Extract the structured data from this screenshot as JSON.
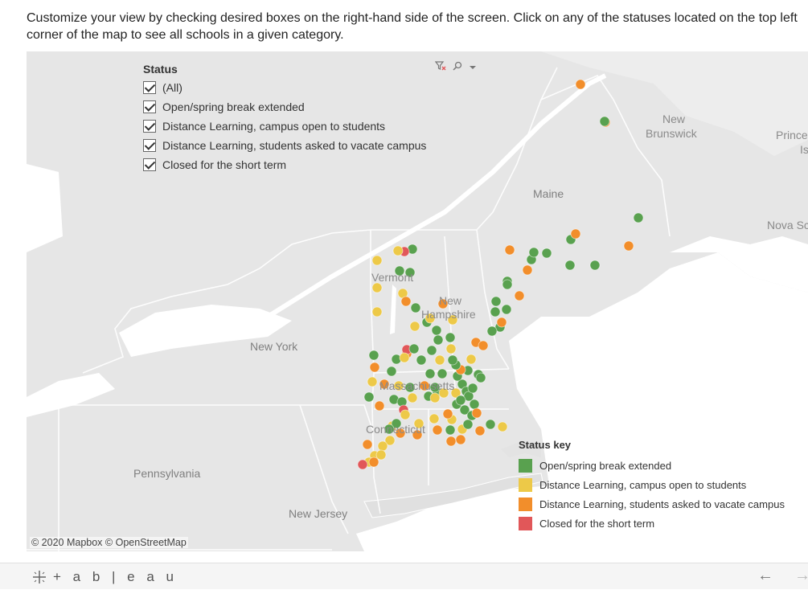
{
  "instructions": "Customize your view by checking desired boxes on the right-hand side of the screen. Click on any of the statuses located on the top left corner of the map to see all schools in a given category.",
  "filter": {
    "title": "Status",
    "items": [
      {
        "label": "(All)",
        "checked": true
      },
      {
        "label": "Open/spring break extended",
        "checked": true
      },
      {
        "label": "Distance Learning, campus open to students",
        "checked": true
      },
      {
        "label": "Distance Learning, students asked to vacate campus",
        "checked": true
      },
      {
        "label": "Closed for the short term",
        "checked": true
      }
    ],
    "tools": {
      "clear_icon": "filter-clear-icon",
      "search_icon": "search-icon",
      "menu_icon": "dropdown-arrow-icon"
    }
  },
  "legend": {
    "title": "Status key",
    "items": [
      {
        "label": "Open/spring break extended",
        "color": "#59a14f"
      },
      {
        "label": "Distance Learning, campus open to students",
        "color": "#edc948"
      },
      {
        "label": "Distance Learning, students asked to vacate campus",
        "color": "#f28e2b"
      },
      {
        "label": "Closed for the short term",
        "color": "#e15759"
      }
    ]
  },
  "map": {
    "places": {
      "new_york": "New York",
      "pennsylvania": "Pennsylvania",
      "new_jersey": "New Jersey",
      "vermont": "Vermont",
      "new_hampshire_1": "New",
      "new_hampshire_2": "Hampshire",
      "massachusetts": "Massachusetts",
      "connecticut": "Connecticut",
      "maine": "Maine",
      "new_brunswick_1": "New",
      "new_brunswick_2": "Brunswick",
      "prince_1": "Prince",
      "prince_2": "Is",
      "nova_scotia": "Nova Sc"
    },
    "attribution": "© 2020 Mapbox  © OpenStreetMap",
    "colors": {
      "land": "#e6e6e6",
      "water": "#ffffff",
      "borders": "#ffffff"
    }
  },
  "footer": {
    "logo": "+ a b | e a u",
    "logo_icon": "tableau-cross-icon",
    "back_icon": "arrow-left-icon",
    "forward_icon": "arrow-right-icon"
  },
  "points": [
    [
      "open",
      513,
      310
    ],
    [
      "closed",
      503,
      313
    ],
    [
      "open",
      497,
      337
    ],
    [
      "open",
      510,
      339
    ],
    [
      "yellow",
      495,
      312
    ],
    [
      "yellow",
      469,
      324
    ],
    [
      "yellow",
      469,
      358
    ],
    [
      "yellow",
      469,
      388
    ],
    [
      "yellow",
      501,
      365
    ],
    [
      "orange",
      505,
      375
    ],
    [
      "open",
      517,
      383
    ],
    [
      "yellow",
      516,
      406
    ],
    [
      "open",
      531,
      401
    ],
    [
      "open",
      543,
      411
    ],
    [
      "yellow",
      535,
      396
    ],
    [
      "orange",
      551,
      378
    ],
    [
      "yellow",
      563,
      398
    ],
    [
      "open",
      560,
      420
    ],
    [
      "yellow",
      561,
      434
    ],
    [
      "orange",
      592,
      426
    ],
    [
      "orange",
      601,
      430
    ],
    [
      "yellow",
      586,
      447
    ],
    [
      "open",
      582,
      461
    ],
    [
      "open",
      595,
      466
    ],
    [
      "open",
      598,
      470
    ],
    [
      "open",
      575,
      478
    ],
    [
      "open",
      580,
      487
    ],
    [
      "open",
      583,
      493
    ],
    [
      "open",
      569,
      468
    ],
    [
      "orange",
      573,
      460
    ],
    [
      "open",
      567,
      454
    ],
    [
      "open",
      563,
      448
    ],
    [
      "open",
      550,
      465
    ],
    [
      "open",
      535,
      465
    ],
    [
      "orange",
      506,
      440
    ],
    [
      "closed",
      506,
      435
    ],
    [
      "open",
      493,
      447
    ],
    [
      "yellow",
      503,
      445
    ],
    [
      "open",
      515,
      434
    ],
    [
      "open",
      524,
      448
    ],
    [
      "yellow",
      547,
      448
    ],
    [
      "open",
      537,
      436
    ],
    [
      "open",
      465,
      442
    ],
    [
      "yellow",
      463,
      475
    ],
    [
      "orange",
      466,
      457
    ],
    [
      "open",
      487,
      462
    ],
    [
      "open",
      459,
      494
    ],
    [
      "orange",
      478,
      478
    ],
    [
      "yellow",
      496,
      480
    ],
    [
      "open",
      510,
      482
    ],
    [
      "orange",
      528,
      480
    ],
    [
      "open",
      533,
      493
    ],
    [
      "open",
      544,
      488
    ],
    [
      "open",
      541,
      482
    ],
    [
      "yellow",
      541,
      495
    ],
    [
      "open",
      490,
      497
    ],
    [
      "open",
      500,
      500
    ],
    [
      "closed",
      502,
      510
    ],
    [
      "yellow",
      504,
      516
    ],
    [
      "orange",
      472,
      505
    ],
    [
      "yellow",
      488,
      530
    ],
    [
      "open",
      493,
      527
    ],
    [
      "open",
      484,
      534
    ],
    [
      "orange",
      498,
      539
    ],
    [
      "yellow",
      485,
      548
    ],
    [
      "yellow",
      476,
      555
    ],
    [
      "orange",
      457,
      553
    ],
    [
      "yellow",
      466,
      567
    ],
    [
      "yellow",
      459,
      575
    ],
    [
      "closed",
      451,
      578
    ],
    [
      "orange",
      465,
      575
    ],
    [
      "yellow",
      474,
      566
    ],
    [
      "yellow",
      521,
      527
    ],
    [
      "orange",
      519,
      541
    ],
    [
      "yellow",
      540,
      521
    ],
    [
      "orange",
      544,
      535
    ],
    [
      "yellow",
      562,
      522
    ],
    [
      "orange",
      557,
      515
    ],
    [
      "open",
      560,
      535
    ],
    [
      "orange",
      561,
      549
    ],
    [
      "orange",
      573,
      547
    ],
    [
      "yellow",
      575,
      534
    ],
    [
      "open",
      582,
      528
    ],
    [
      "open",
      578,
      510
    ],
    [
      "open",
      568,
      503
    ],
    [
      "open",
      587,
      517
    ],
    [
      "open",
      590,
      503
    ],
    [
      "open",
      610,
      528
    ],
    [
      "yellow",
      625,
      531
    ],
    [
      "orange",
      597,
      536
    ],
    [
      "orange",
      593,
      514
    ],
    [
      "open",
      622,
      407
    ],
    [
      "orange",
      624,
      401
    ],
    [
      "open",
      612,
      412
    ],
    [
      "open",
      616,
      388
    ],
    [
      "open",
      630,
      385
    ],
    [
      "open",
      617,
      375
    ],
    [
      "orange",
      646,
      368
    ],
    [
      "open",
      631,
      350
    ],
    [
      "open",
      631,
      354
    ],
    [
      "orange",
      634,
      311
    ],
    [
      "open",
      661,
      323
    ],
    [
      "open",
      664,
      314
    ],
    [
      "open",
      680,
      315
    ],
    [
      "orange",
      656,
      336
    ],
    [
      "open",
      709,
      330
    ],
    [
      "open",
      740,
      330
    ],
    [
      "open",
      710,
      298
    ],
    [
      "orange",
      716,
      291
    ],
    [
      "open",
      794,
      271
    ],
    [
      "orange",
      782,
      306
    ],
    [
      "orange",
      753,
      152
    ],
    [
      "open",
      752,
      151
    ],
    [
      "orange",
      722,
      105
    ],
    [
      "open",
      545,
      423
    ],
    [
      "yellow",
      552,
      489
    ],
    [
      "yellow",
      567,
      489
    ],
    [
      "open",
      588,
      483
    ],
    [
      "open",
      573,
      498
    ],
    [
      "yellow",
      513,
      495
    ]
  ]
}
